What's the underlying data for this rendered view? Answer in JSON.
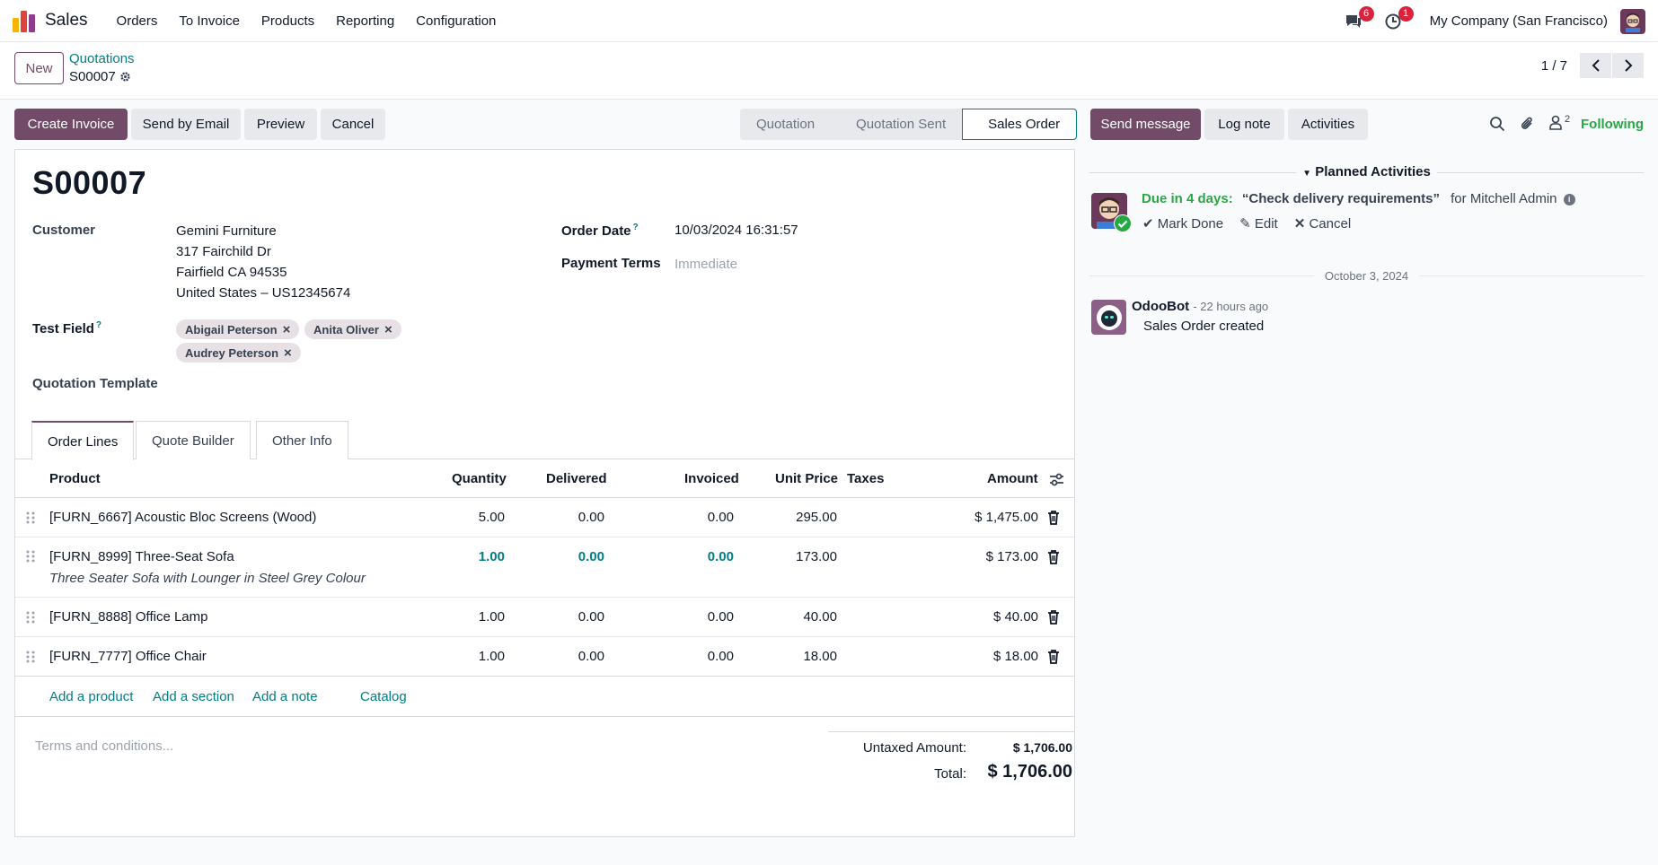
{
  "nav": {
    "app_name": "Sales",
    "menu": [
      "Orders",
      "To Invoice",
      "Products",
      "Reporting",
      "Configuration"
    ],
    "messages_count": "6",
    "activities_count": "1",
    "company": "My Company (San Francisco)"
  },
  "control": {
    "new_label": "New",
    "breadcrumb": "Quotations",
    "record": "S00007",
    "pager": "1 / 7"
  },
  "statusbar": {
    "buttons": [
      "Create Invoice",
      "Send by Email",
      "Preview",
      "Cancel"
    ],
    "stages": [
      "Quotation",
      "Quotation Sent",
      "Sales Order"
    ],
    "active_stage": "Sales Order"
  },
  "form": {
    "title": "S00007",
    "customer_label": "Customer",
    "customer_name": "Gemini Furniture",
    "address_line1": "317 Fairchild Dr",
    "address_line2": "Fairfield CA 94535",
    "address_line3": "United States – US12345674",
    "order_date_label": "Order Date",
    "order_date": "10/03/2024 16:31:57",
    "payment_terms_label": "Payment Terms",
    "payment_terms_placeholder": "Immediate",
    "test_field_label": "Test Field",
    "help_mark": "?",
    "tags": [
      "Abigail Peterson",
      "Anita Oliver",
      "Audrey Peterson"
    ],
    "template_label": "Quotation Template"
  },
  "tabs": [
    "Order Lines",
    "Quote Builder",
    "Other Info"
  ],
  "table": {
    "headers": {
      "product": "Product",
      "quantity": "Quantity",
      "delivered": "Delivered",
      "invoiced": "Invoiced",
      "unit_price": "Unit Price",
      "taxes": "Taxes",
      "amount": "Amount"
    },
    "rows": [
      {
        "product": "[FURN_6667] Acoustic Bloc Screens (Wood)",
        "description": "",
        "quantity": "5.00",
        "delivered": "0.00",
        "invoiced": "0.00",
        "unit_price": "295.00",
        "amount": "$ 1,475.00"
      },
      {
        "product": "[FURN_8999] Three-Seat Sofa",
        "description": "Three Seater Sofa with Lounger in Steel Grey Colour",
        "quantity": "1.00",
        "delivered": "0.00",
        "invoiced": "0.00",
        "unit_price": "173.00",
        "amount": "$ 173.00"
      },
      {
        "product": "[FURN_8888] Office Lamp",
        "description": "",
        "quantity": "1.00",
        "delivered": "0.00",
        "invoiced": "0.00",
        "unit_price": "40.00",
        "amount": "$ 40.00"
      },
      {
        "product": "[FURN_7777] Office Chair",
        "description": "",
        "quantity": "1.00",
        "delivered": "0.00",
        "invoiced": "0.00",
        "unit_price": "18.00",
        "amount": "$ 18.00"
      }
    ],
    "add_links": [
      "Add a product",
      "Add a section",
      "Add a note",
      "Catalog"
    ]
  },
  "footer": {
    "terms_placeholder": "Terms and conditions...",
    "untaxed_label": "Untaxed Amount:",
    "untaxed_value": "$ 1,706.00",
    "total_label": "Total:",
    "total_value": "$ 1,706.00"
  },
  "chatter": {
    "send_message": "Send message",
    "log_note": "Log note",
    "activities": "Activities",
    "followers_count": "2",
    "following": "Following",
    "planned_title": "Planned Activities",
    "due_text": "Due in 4 days:",
    "activity_summary": "“Check delivery requirements”",
    "activity_for": "for Mitchell Admin",
    "mark_done": "Mark Done",
    "edit": "Edit",
    "cancel": "Cancel",
    "date_separator": "October 3, 2024",
    "message_author": "OdooBot",
    "message_time": "- 22 hours ago",
    "message_body": "Sales Order created"
  },
  "colors": {
    "primary": "#714b67",
    "link": "#017e84",
    "success": "#28a745",
    "badge": "#d9233d"
  }
}
